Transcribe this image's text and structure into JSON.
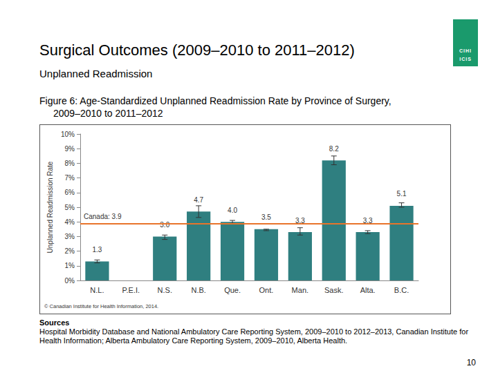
{
  "slide": {
    "title": "Surgical Outcomes (2009–2010 to 2011–2012)",
    "subtitle": "Unplanned Readmission",
    "copyright": "© Canadian Institute for Health Information, 2014.",
    "sources_heading": "Sources",
    "sources_text": "Hospital Morbidity Database and National Ambulatory Care Reporting System, 2009–2010 to 2012–2013, Canadian Institute for Health Information; Alberta Ambulatory Care Reporting System, 2009–2010, Alberta Health.",
    "page": "10",
    "logo_top": "CIHI",
    "logo_bottom": "ICIS"
  },
  "chart_data": {
    "type": "bar",
    "title": "Figure 6: Age-Standardized Unplanned Readmission Rate by Province of Surgery, 2009–2010 to 2011–2012",
    "categories": [
      "N.L.",
      "P.E.I.",
      "N.S.",
      "N.B.",
      "Que.",
      "Ont.",
      "Man.",
      "Sask.",
      "Alta.",
      "B.C."
    ],
    "values": [
      1.3,
      null,
      3.0,
      4.7,
      4.0,
      3.5,
      3.3,
      8.2,
      3.3,
      5.1
    ],
    "value_labels": [
      "1.3",
      null,
      "3.0",
      "4.7",
      "4.0",
      "3.5",
      "3.3",
      "8.2",
      "3.3",
      "5.1"
    ],
    "error_low": [
      1.2,
      null,
      2.8,
      4.3,
      3.9,
      3.4,
      3.1,
      7.9,
      3.2,
      5.0
    ],
    "error_high": [
      1.4,
      null,
      3.1,
      5.1,
      4.1,
      3.5,
      3.6,
      8.5,
      3.4,
      5.3
    ],
    "color": "#2f7f80",
    "ylabel": "Unplanned Readmission Rate",
    "ylim": [
      0,
      10
    ],
    "yticks": [
      {
        "value": 0,
        "label": "0%"
      },
      {
        "value": 1,
        "label": "1%"
      },
      {
        "value": 2,
        "label": "2%"
      },
      {
        "value": 3,
        "label": "3%"
      },
      {
        "value": 4,
        "label": "4%"
      },
      {
        "value": 5,
        "label": "5%"
      },
      {
        "value": 6,
        "label": "6%"
      },
      {
        "value": 7,
        "label": "7%"
      },
      {
        "value": 8,
        "label": "8%"
      },
      {
        "value": 9,
        "label": "9%"
      },
      {
        "value": 10,
        "label": "10%"
      }
    ],
    "grid": false,
    "data_labels": true,
    "reference_line": {
      "value": 3.9,
      "label": "Canada: 3.9",
      "color": "#e8742a"
    }
  }
}
